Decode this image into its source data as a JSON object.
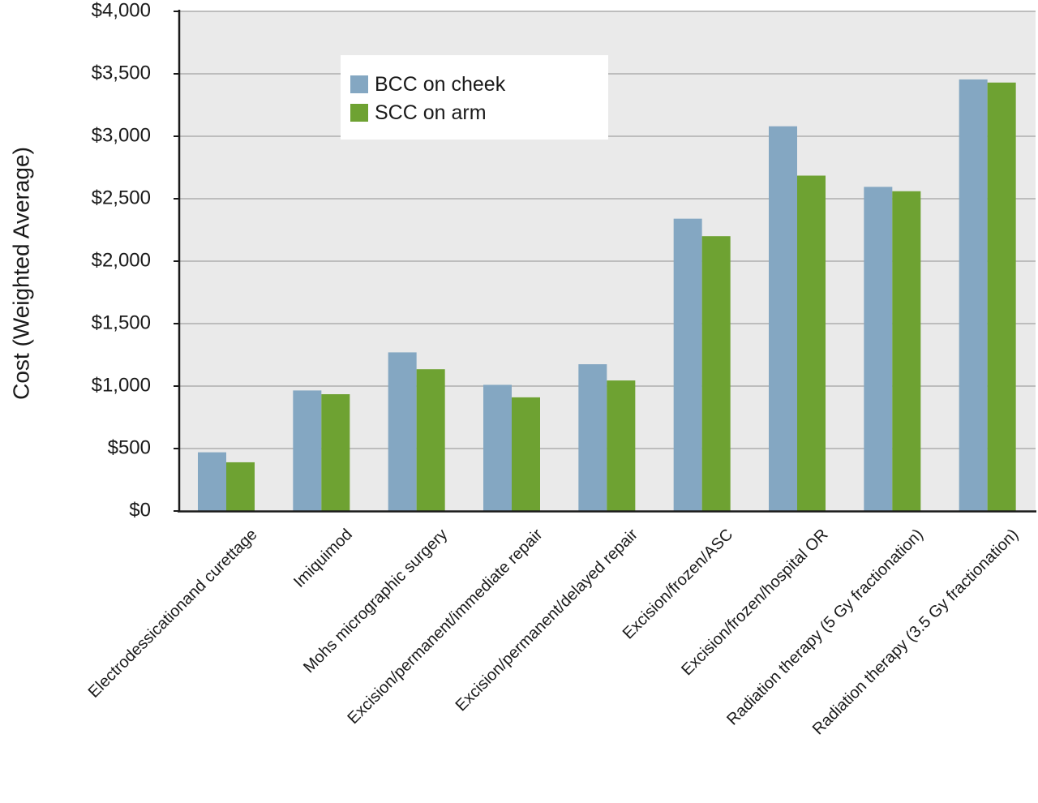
{
  "chart_data": {
    "type": "bar",
    "title": "",
    "xlabel": "",
    "ylabel": "Cost (Weighted Average)",
    "ylim": [
      0,
      4000
    ],
    "ytick_values": [
      0,
      500,
      1000,
      1500,
      2000,
      2500,
      3000,
      3500,
      4000
    ],
    "ytick_labels": [
      "$0",
      "$500",
      "$1,000",
      "$1,500",
      "$2,000",
      "$2,500",
      "$3,000",
      "$3,500",
      "$4,000"
    ],
    "grid": true,
    "legend_position": "top-center",
    "categories": [
      "Electrodessicationand curettage",
      "Imiquimod",
      "Mohs micrographic surgery",
      "Excision/permanent/immediate repair",
      "Excision/permanent/delayed repair",
      "Excision/frozen/ASC",
      "Excision/frozen/hospital OR",
      "Radiation therapy (5 Gy fractionation)",
      "Radiation therapy (3.5 Gy fractionation)"
    ],
    "series": [
      {
        "name": "BCC on cheek",
        "color": "#84a7c2",
        "values": [
          470,
          965,
          1270,
          1010,
          1175,
          2340,
          3080,
          2595,
          3455
        ]
      },
      {
        "name": "SCC on arm",
        "color": "#6ea232",
        "values": [
          390,
          935,
          1135,
          910,
          1045,
          2200,
          2685,
          2560,
          3430
        ]
      }
    ],
    "plot_background": "#eaeaea",
    "gridline_color": "#bdbdbd"
  }
}
